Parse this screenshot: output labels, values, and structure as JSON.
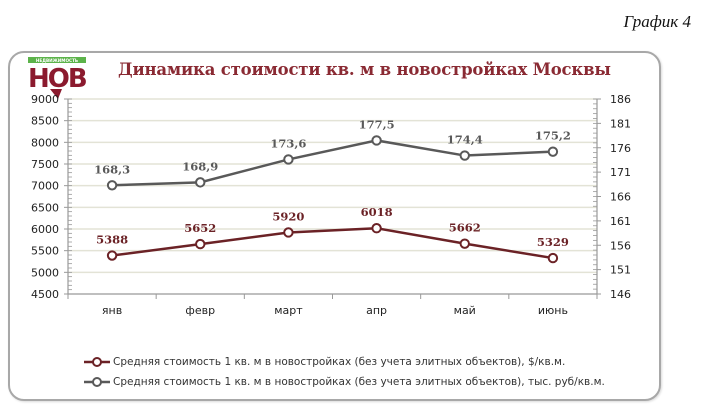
{
  "caption": "График 4",
  "logo": {
    "tagline": "НЕДВИЖИМОСТЬ",
    "letters": "НОВ",
    "brand_color": "#8b1a2e",
    "tagline_color": "#5cb34a"
  },
  "colors": {
    "series_usd": "#6b2226",
    "series_rub": "#595959",
    "grid": "#e3e3d6",
    "axis": "#999999"
  },
  "chart_data": {
    "type": "line",
    "title": "Динамика стоимости кв. м в новостройках Москвы",
    "categories": [
      "янв",
      "февр",
      "март",
      "апр",
      "май",
      "июнь"
    ],
    "xlabel": "",
    "ylabel": "",
    "y_left": {
      "min": 4500,
      "max": 9000,
      "step": 500,
      "ticks": [
        "9000",
        "8500",
        "8000",
        "7500",
        "7000",
        "6500",
        "6000",
        "5500",
        "5000",
        "4500"
      ]
    },
    "y_right": {
      "min": 146,
      "max": 186,
      "step": 5,
      "ticks": [
        "186",
        "181",
        "176",
        "171",
        "166",
        "161",
        "156",
        "151",
        "146"
      ]
    },
    "grid": true,
    "legend_position": "bottom",
    "series": [
      {
        "name": "Средняя стоимость 1 кв. м в новостройках (без учета элитных объектов), $/кв.м.",
        "axis": "left",
        "values": [
          5388,
          5652,
          5920,
          6018,
          5662,
          5329
        ],
        "labels": [
          "5388",
          "5652",
          "5920",
          "6018",
          "5662",
          "5329"
        ]
      },
      {
        "name": "Средняя стоимость 1 кв. м в новостройках (без учета элитных объектов), тыс. руб/кв.м.",
        "axis": "right",
        "values": [
          168.3,
          168.9,
          173.6,
          177.5,
          174.4,
          175.2
        ],
        "labels": [
          "168,3",
          "168,9",
          "173,6",
          "177,5",
          "174,4",
          "175,2"
        ]
      }
    ]
  }
}
